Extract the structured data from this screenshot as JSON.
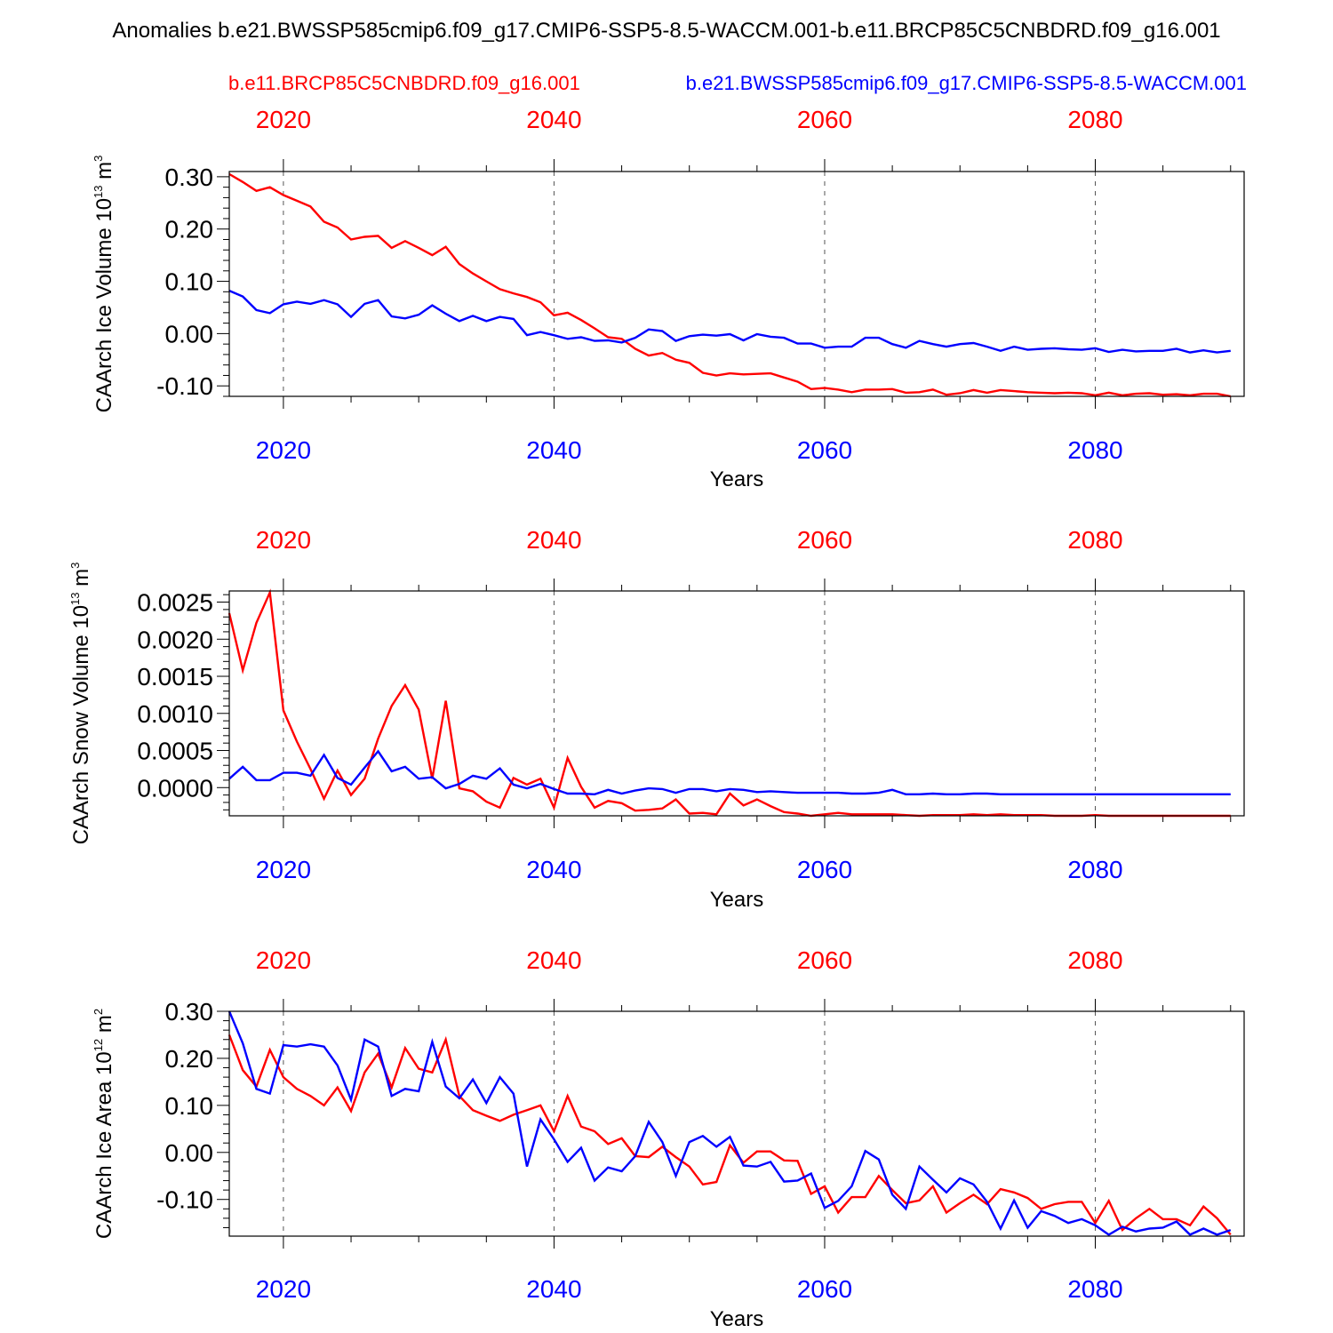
{
  "title": "Anomalies b.e21.BWSSP585cmip6.f09_g17.CMIP6-SSP5-8.5-WACCM.001-b.e11.BRCP85C5CNBDRD.f09_g16.001",
  "experiments": {
    "red": "b.e11.BRCP85C5CNBDRD.f09_g16.001",
    "blue": "b.e21.BWSSP585cmip6.f09_g17.CMIP6-SSP5-8.5-WACCM.001"
  },
  "colors": {
    "red": "#ff0000",
    "blue": "#0000ff"
  },
  "chart_data": [
    {
      "type": "line",
      "ylabel": "CAArch Ice Volume",
      "yunit_base": "10",
      "yunit_exp": "13",
      "yunit_tail": " m",
      "yunit_sup": "3",
      "xlabel": "Years",
      "xlim": [
        2016,
        2091
      ],
      "ylim": [
        -0.12,
        0.31
      ],
      "xticks": [
        2020,
        2040,
        2060,
        2080
      ],
      "xtick_labels": [
        "2020",
        "2040",
        "2060",
        "2080"
      ],
      "yticks": [
        -0.1,
        0.0,
        0.1,
        0.2,
        0.3
      ],
      "ytick_labels": [
        "-0.10",
        "0.00",
        "0.10",
        "0.20",
        "0.30"
      ],
      "x_start": 2016,
      "series": [
        {
          "name": "b.e11.BRCP85C5CNBDRD.f09_g16.001",
          "color": "red",
          "values": [
            0.305,
            0.29,
            0.273,
            0.28,
            0.265,
            0.254,
            0.243,
            0.214,
            0.203,
            0.18,
            0.185,
            0.187,
            0.164,
            0.177,
            0.164,
            0.15,
            0.166,
            0.133,
            0.115,
            0.1,
            0.085,
            0.077,
            0.07,
            0.06,
            0.035,
            0.04,
            0.026,
            0.01,
            -0.007,
            -0.01,
            -0.029,
            -0.042,
            -0.037,
            -0.05,
            -0.056,
            -0.075,
            -0.08,
            -0.076,
            -0.078,
            -0.077,
            -0.076,
            -0.084,
            -0.092,
            -0.106,
            -0.104,
            -0.107,
            -0.112,
            -0.107,
            -0.107,
            -0.106,
            -0.113,
            -0.112,
            -0.107,
            -0.117,
            -0.114,
            -0.108,
            -0.113,
            -0.108,
            -0.11,
            -0.112,
            -0.113,
            -0.114,
            -0.113,
            -0.114,
            -0.118,
            -0.113,
            -0.118,
            -0.115,
            -0.114,
            -0.117,
            -0.116,
            -0.118,
            -0.115,
            -0.115,
            -0.12
          ]
        },
        {
          "name": "b.e21.BWSSP585cmip6.f09_g17.CMIP6-SSP5-8.5-WACCM.001",
          "color": "blue",
          "values": [
            0.082,
            0.071,
            0.045,
            0.039,
            0.056,
            0.061,
            0.057,
            0.064,
            0.056,
            0.032,
            0.057,
            0.064,
            0.033,
            0.029,
            0.036,
            0.054,
            0.038,
            0.024,
            0.034,
            0.024,
            0.032,
            0.028,
            -0.003,
            0.003,
            -0.003,
            -0.01,
            -0.007,
            -0.014,
            -0.013,
            -0.017,
            -0.008,
            0.008,
            0.005,
            -0.014,
            -0.005,
            -0.002,
            -0.004,
            -0.001,
            -0.013,
            -0.001,
            -0.006,
            -0.008,
            -0.019,
            -0.019,
            -0.027,
            -0.025,
            -0.025,
            -0.008,
            -0.008,
            -0.02,
            -0.027,
            -0.014,
            -0.02,
            -0.025,
            -0.02,
            -0.018,
            -0.025,
            -0.033,
            -0.025,
            -0.031,
            -0.029,
            -0.028,
            -0.03,
            -0.031,
            -0.028,
            -0.035,
            -0.031,
            -0.034,
            -0.033,
            -0.033,
            -0.029,
            -0.036,
            -0.032,
            -0.036,
            -0.033
          ]
        }
      ]
    },
    {
      "type": "line",
      "ylabel": "CAArch Snow Volume",
      "yunit_base": "10",
      "yunit_exp": "13",
      "yunit_tail": " m",
      "yunit_sup": "3",
      "xlabel": "Years",
      "xlim": [
        2016,
        2091
      ],
      "ylim": [
        -0.00038,
        0.00265
      ],
      "xticks": [
        2020,
        2040,
        2060,
        2080
      ],
      "xtick_labels": [
        "2020",
        "2040",
        "2060",
        "2080"
      ],
      "yticks": [
        0.0,
        0.0005,
        0.001,
        0.0015,
        0.002,
        0.0025
      ],
      "ytick_labels": [
        "0.0000",
        "0.0005",
        "0.0010",
        "0.0015",
        "0.0020",
        "0.0025"
      ],
      "x_start": 2016,
      "series": [
        {
          "name": "b.e11.BRCP85C5CNBDRD.f09_g16.001",
          "color": "red",
          "values": [
            0.00235,
            0.00158,
            0.00222,
            0.00263,
            0.00104,
            0.00062,
            0.00025,
            -0.00015,
            0.00023,
            -0.0001,
            0.00012,
            0.00066,
            0.0011,
            0.00138,
            0.00105,
            0.00012,
            0.00117,
            -1e-05,
            -5e-05,
            -0.00019,
            -0.00027,
            0.00013,
            4e-05,
            0.00012,
            -0.00027,
            0.0004,
            1e-05,
            -0.00027,
            -0.00018,
            -0.00021,
            -0.00031,
            -0.0003,
            -0.00028,
            -0.00016,
            -0.00035,
            -0.00034,
            -0.00036,
            -8e-05,
            -0.00024,
            -0.00016,
            -0.00025,
            -0.00033,
            -0.00035,
            -0.00038,
            -0.00036,
            -0.00034,
            -0.00036,
            -0.00036,
            -0.00036,
            -0.00036,
            -0.00037,
            -0.00038,
            -0.00037,
            -0.00037,
            -0.00037,
            -0.00036,
            -0.00037,
            -0.00036,
            -0.00037,
            -0.00037,
            -0.00037,
            -0.00038,
            -0.00038,
            -0.00038,
            -0.00037,
            -0.00038,
            -0.00038,
            -0.00038,
            -0.00038,
            -0.00038,
            -0.00038,
            -0.00038,
            -0.00038,
            -0.00038,
            -0.00038
          ]
        },
        {
          "name": "b.e21.BWSSP585cmip6.f09_g17.CMIP6-SSP5-8.5-WACCM.001",
          "color": "blue",
          "values": [
            0.00012,
            0.00028,
            0.0001,
            0.0001,
            0.0002,
            0.0002,
            0.00016,
            0.00044,
            0.00013,
            4e-05,
            0.00027,
            0.00049,
            0.00022,
            0.00028,
            0.00012,
            0.00014,
            -1e-05,
            5e-05,
            0.00016,
            0.00012,
            0.00026,
            4e-05,
            -1e-05,
            5e-05,
            -2e-05,
            -8e-05,
            -8e-05,
            -9e-05,
            -3e-05,
            -8e-05,
            -4e-05,
            -1e-05,
            -2e-05,
            -7e-05,
            -2e-05,
            -2e-05,
            -5e-05,
            -2e-05,
            -3e-05,
            -6e-05,
            -5e-05,
            -6e-05,
            -7e-05,
            -7e-05,
            -7e-05,
            -7e-05,
            -8e-05,
            -8e-05,
            -7e-05,
            -3e-05,
            -9e-05,
            -9e-05,
            -8e-05,
            -9e-05,
            -9e-05,
            -8e-05,
            -8e-05,
            -9e-05,
            -9e-05,
            -9e-05,
            -9e-05,
            -9e-05,
            -9e-05,
            -9e-05,
            -9e-05,
            -9e-05,
            -9e-05,
            -9e-05,
            -9e-05,
            -9e-05,
            -9e-05,
            -9e-05,
            -9e-05,
            -9e-05,
            -9e-05
          ]
        }
      ]
    },
    {
      "type": "line",
      "ylabel": "CAArch Ice Area",
      "yunit_base": "10",
      "yunit_exp": "12",
      "yunit_tail": " m",
      "yunit_sup": "2",
      "xlabel": "Years",
      "xlim": [
        2016,
        2091
      ],
      "ylim": [
        -0.178,
        0.3
      ],
      "xticks": [
        2020,
        2040,
        2060,
        2080
      ],
      "xtick_labels": [
        "2020",
        "2040",
        "2060",
        "2080"
      ],
      "yticks": [
        -0.1,
        0.0,
        0.1,
        0.2,
        0.3
      ],
      "ytick_labels": [
        "-0.10",
        "0.00",
        "0.10",
        "0.20",
        "0.30"
      ],
      "x_start": 2016,
      "series": [
        {
          "name": "b.e11.BRCP85C5CNBDRD.f09_g16.001",
          "color": "red",
          "values": [
            0.25,
            0.175,
            0.14,
            0.218,
            0.16,
            0.135,
            0.12,
            0.1,
            0.138,
            0.088,
            0.17,
            0.21,
            0.138,
            0.222,
            0.178,
            0.17,
            0.24,
            0.12,
            0.09,
            0.078,
            0.067,
            0.08,
            0.09,
            0.1,
            0.045,
            0.12,
            0.055,
            0.045,
            0.018,
            0.03,
            -0.008,
            -0.01,
            0.012,
            -0.01,
            -0.03,
            -0.068,
            -0.063,
            0.015,
            -0.022,
            0.002,
            0.002,
            -0.017,
            -0.018,
            -0.088,
            -0.072,
            -0.128,
            -0.095,
            -0.095,
            -0.05,
            -0.08,
            -0.108,
            -0.102,
            -0.072,
            -0.128,
            -0.108,
            -0.09,
            -0.11,
            -0.078,
            -0.085,
            -0.097,
            -0.12,
            -0.11,
            -0.105,
            -0.105,
            -0.15,
            -0.103,
            -0.165,
            -0.14,
            -0.12,
            -0.142,
            -0.142,
            -0.155,
            -0.115,
            -0.14,
            -0.175
          ]
        },
        {
          "name": "b.e21.BWSSP585cmip6.f09_g17.CMIP6-SSP5-8.5-WACCM.001",
          "color": "blue",
          "values": [
            0.3,
            0.232,
            0.135,
            0.125,
            0.228,
            0.225,
            0.23,
            0.225,
            0.185,
            0.112,
            0.24,
            0.225,
            0.12,
            0.135,
            0.13,
            0.235,
            0.14,
            0.115,
            0.155,
            0.105,
            0.16,
            0.125,
            -0.03,
            0.07,
            0.028,
            -0.02,
            0.01,
            -0.06,
            -0.032,
            -0.04,
            -0.008,
            0.065,
            0.022,
            -0.05,
            0.022,
            0.035,
            0.012,
            0.033,
            -0.028,
            -0.03,
            -0.02,
            -0.062,
            -0.06,
            -0.045,
            -0.118,
            -0.103,
            -0.072,
            0.003,
            -0.015,
            -0.09,
            -0.12,
            -0.03,
            -0.058,
            -0.085,
            -0.055,
            -0.068,
            -0.105,
            -0.162,
            -0.102,
            -0.16,
            -0.125,
            -0.135,
            -0.15,
            -0.142,
            -0.155,
            -0.175,
            -0.158,
            -0.168,
            -0.162,
            -0.16,
            -0.147,
            -0.175,
            -0.162,
            -0.175,
            -0.165
          ]
        }
      ]
    }
  ]
}
